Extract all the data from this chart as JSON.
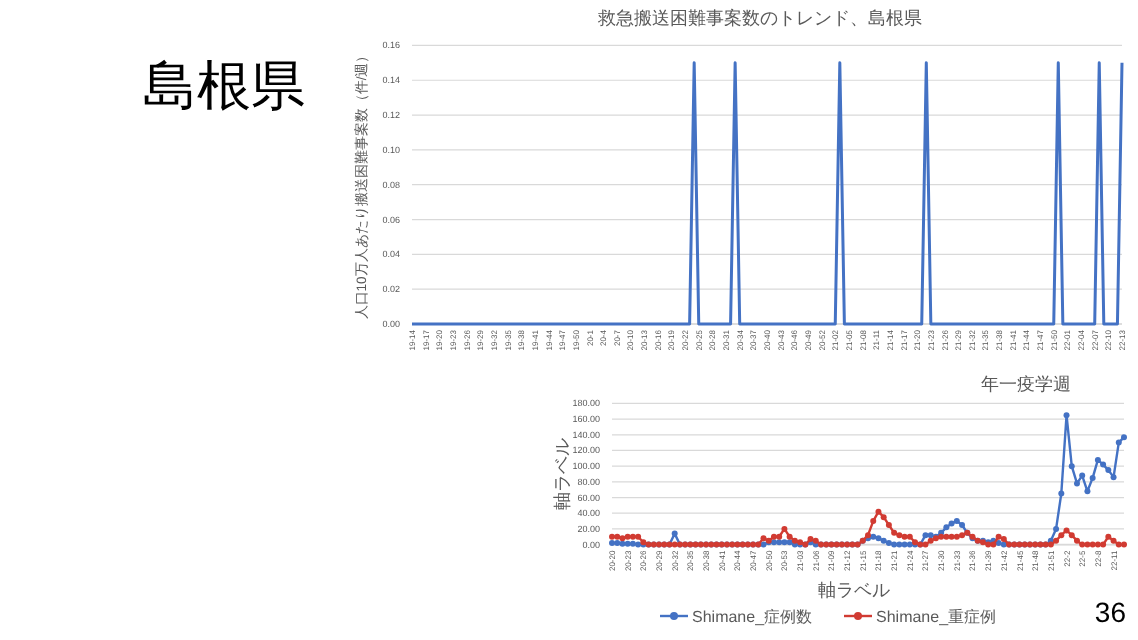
{
  "chart_data": [
    {
      "type": "line",
      "title": "救急搬送困難事案数のトレンド、島根県",
      "xlabel": "年一疫学週",
      "ylabel": "人口10万人あたり搬送困難事案数（件/週）",
      "annotations": [
        "島根県"
      ],
      "categories": [
        "19-14",
        null,
        null,
        "19-17",
        null,
        null,
        "19-20",
        null,
        null,
        "19-23",
        null,
        null,
        "19-26",
        null,
        null,
        "19-29",
        null,
        null,
        "19-32",
        null,
        null,
        "19-35",
        null,
        null,
        "19-38",
        null,
        null,
        "19-41",
        null,
        null,
        "19-44",
        null,
        null,
        "19-47",
        null,
        null,
        "19-50",
        null,
        null,
        "20-1",
        null,
        null,
        "20-4",
        null,
        null,
        "20-7",
        null,
        null,
        "20-10",
        null,
        null,
        "20-13",
        null,
        null,
        "20-16",
        null,
        null,
        "20-19",
        null,
        null,
        "20-22",
        null,
        null,
        "20-25",
        null,
        null,
        "20-28",
        null,
        null,
        "20-31",
        null,
        null,
        "20-34",
        null,
        null,
        "20-37",
        null,
        null,
        "20-40",
        null,
        null,
        "20-43",
        null,
        null,
        "20-46",
        null,
        null,
        "20-49",
        null,
        null,
        "20-52",
        null,
        null,
        "21-02",
        null,
        null,
        "21-05",
        null,
        null,
        "21-08",
        null,
        null,
        "21-11",
        null,
        null,
        "21-14",
        null,
        null,
        "21-17",
        null,
        null,
        "21-20",
        null,
        null,
        "21-23",
        null,
        null,
        "21-26",
        null,
        null,
        "21-29",
        null,
        null,
        "21-32",
        null,
        null,
        "21-35",
        null,
        null,
        "21-38",
        null,
        null,
        "21-41",
        null,
        null,
        "21-44",
        null,
        null,
        "21-47",
        null,
        null,
        "21-50",
        null,
        null,
        "22-01",
        null,
        null,
        "22-04",
        null,
        null,
        "22-07",
        null,
        null,
        "22-10",
        null,
        null,
        "22-13"
      ],
      "series": [
        {
          "color": "#4472c4",
          "values": [
            0,
            0,
            0,
            0,
            0,
            0,
            0,
            0,
            0,
            0,
            0,
            0,
            0,
            0,
            0,
            0,
            0,
            0,
            0,
            0,
            0,
            0,
            0,
            0,
            0,
            0,
            0,
            0,
            0,
            0,
            0,
            0,
            0,
            0,
            0,
            0,
            0,
            0,
            0,
            0,
            0,
            0,
            0,
            0,
            0,
            0,
            0,
            0,
            0,
            0,
            0,
            0,
            0,
            0,
            0,
            0,
            0,
            0,
            0,
            0,
            0,
            0,
            0.15,
            0,
            0,
            0,
            0,
            0,
            0,
            0,
            0,
            0.15,
            0,
            0,
            0,
            0,
            0,
            0,
            0,
            0,
            0,
            0,
            0,
            0,
            0,
            0,
            0,
            0,
            0,
            0,
            0,
            0,
            0,
            0,
            0.15,
            0,
            0,
            0,
            0,
            0,
            0,
            0,
            0,
            0,
            0,
            0,
            0,
            0,
            0,
            0,
            0,
            0,
            0,
            0.15,
            0,
            0,
            0,
            0,
            0,
            0,
            0,
            0,
            0,
            0,
            0,
            0,
            0,
            0,
            0,
            0,
            0,
            0,
            0,
            0,
            0,
            0,
            0,
            0,
            0,
            0,
            0,
            0,
            0.15,
            0,
            0,
            0,
            0,
            0,
            0,
            0,
            0,
            0.15,
            0,
            0,
            0,
            0,
            0.15
          ]
        }
      ],
      "ylim": [
        0,
        0.16
      ],
      "yticks": [
        {
          "value": 0,
          "label": "0.00"
        },
        {
          "value": 0.02,
          "label": "0.02"
        },
        {
          "value": 0.04,
          "label": "0.04"
        },
        {
          "value": 0.06,
          "label": "0.06"
        },
        {
          "value": 0.08,
          "label": "0.08"
        },
        {
          "value": 0.1,
          "label": "0.10"
        },
        {
          "value": 0.12,
          "label": "0.12"
        },
        {
          "value": 0.14,
          "label": "0.14"
        },
        {
          "value": 0.16,
          "label": "0.16"
        }
      ],
      "grid": "y"
    },
    {
      "type": "line",
      "xlabel": "軸ラベル",
      "ylabel": "軸ラベル",
      "annotations": [
        "36"
      ],
      "categories": [
        "20-20",
        null,
        null,
        "20-23",
        null,
        null,
        "20-26",
        null,
        null,
        "20-29",
        null,
        null,
        "20-32",
        null,
        null,
        "20-35",
        null,
        null,
        "20-38",
        null,
        null,
        "20-41",
        null,
        null,
        "20-44",
        null,
        null,
        "20-47",
        null,
        null,
        "20-50",
        null,
        null,
        "20-53",
        null,
        null,
        "21-03",
        null,
        null,
        "21-06",
        null,
        null,
        "21-09",
        null,
        null,
        "21-12",
        null,
        null,
        "21-15",
        null,
        null,
        "21-18",
        null,
        null,
        "21-21",
        null,
        null,
        "21-24",
        null,
        null,
        "21-27",
        null,
        null,
        "21-30",
        null,
        null,
        "21-33",
        null,
        null,
        "21-36",
        null,
        null,
        "21-39",
        null,
        null,
        "21-42",
        null,
        null,
        "21-45",
        null,
        null,
        "21-48",
        null,
        null,
        "21-51",
        null,
        null,
        "22-2",
        null,
        null,
        "22-5",
        null,
        null,
        "22-8",
        null,
        null,
        "22-11",
        null,
        null
      ],
      "series": [
        {
          "name": "Shimane_症例数",
          "color": "#4472c4",
          "values": [
            2,
            2,
            1,
            1,
            1,
            0,
            0,
            0,
            0,
            0,
            0,
            0,
            14,
            0,
            0,
            0,
            0,
            0,
            0,
            0,
            0,
            0,
            0,
            0,
            0,
            0,
            0,
            0,
            0,
            0,
            3,
            3,
            3,
            3,
            3,
            0,
            0,
            0,
            3,
            0,
            0,
            0,
            0,
            0,
            0,
            0,
            0,
            0,
            5,
            8,
            10,
            8,
            5,
            2,
            0,
            0,
            0,
            0,
            0,
            0,
            12,
            12,
            10,
            15,
            22,
            27,
            30,
            25,
            15,
            8,
            5,
            5,
            3,
            5,
            2,
            0,
            0,
            0,
            0,
            0,
            0,
            0,
            0,
            0,
            5,
            20,
            65,
            165,
            100,
            78,
            88,
            68,
            85,
            108,
            102,
            95,
            86,
            130,
            137
          ]
        },
        {
          "name": "Shimane_重症例",
          "color": "#d13b32",
          "values": [
            10,
            10,
            8,
            10,
            10,
            10,
            3,
            0,
            0,
            0,
            0,
            0,
            0,
            0,
            0,
            0,
            0,
            0,
            0,
            0,
            0,
            0,
            0,
            0,
            0,
            0,
            0,
            0,
            0,
            8,
            5,
            10,
            10,
            20,
            10,
            5,
            3,
            0,
            7,
            5,
            0,
            0,
            0,
            0,
            0,
            0,
            0,
            0,
            5,
            12,
            30,
            42,
            35,
            25,
            15,
            12,
            10,
            10,
            3,
            0,
            0,
            5,
            8,
            10,
            10,
            10,
            10,
            12,
            15,
            10,
            5,
            3,
            0,
            0,
            10,
            7,
            0,
            0,
            0,
            0,
            0,
            0,
            0,
            0,
            0,
            5,
            12,
            18,
            12,
            5,
            0,
            0,
            0,
            0,
            0,
            10,
            5,
            0,
            0
          ]
        }
      ],
      "ylim": [
        0,
        180
      ],
      "yticks": [
        {
          "value": 0,
          "label": "0.00"
        },
        {
          "value": 20,
          "label": "20.00"
        },
        {
          "value": 40,
          "label": "40.00"
        },
        {
          "value": 60,
          "label": "60.00"
        },
        {
          "value": 80,
          "label": "80.00"
        },
        {
          "value": 100,
          "label": "100.00"
        },
        {
          "value": 120,
          "label": "120.00"
        },
        {
          "value": 140,
          "label": "140.00"
        },
        {
          "value": 160,
          "label": "160.00"
        },
        {
          "value": 180,
          "label": "180.00"
        }
      ],
      "grid": "y",
      "marker": "circle",
      "legend": "bottom"
    }
  ]
}
